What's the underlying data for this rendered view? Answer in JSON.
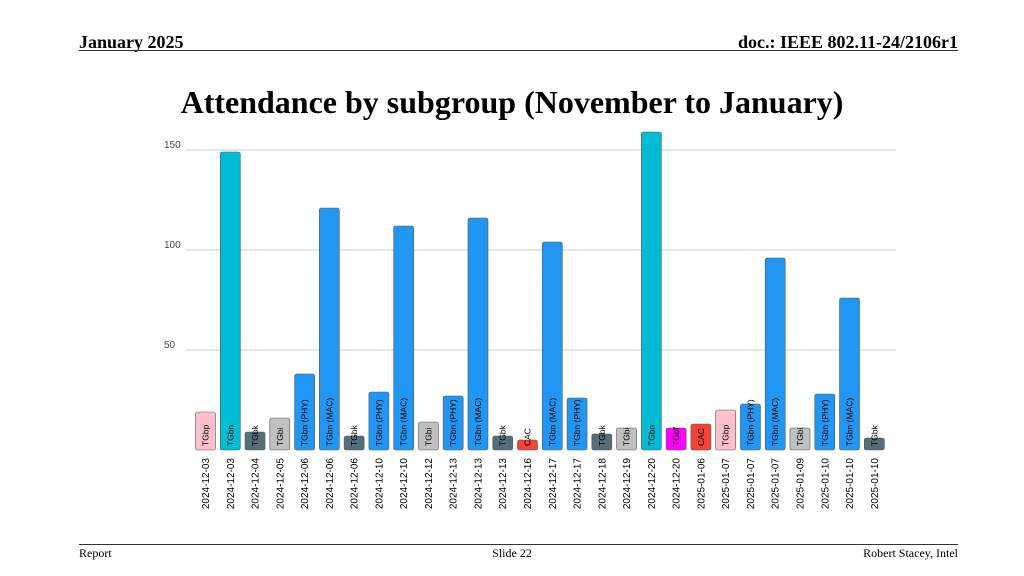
{
  "header": {
    "date": "January 2025",
    "doc": "doc.: IEEE 802.11-24/2106r1"
  },
  "title": "Attendance by subgroup (November to January)",
  "footer": {
    "left": "Report",
    "center": "Slide 22",
    "right": "Robert Stacey, Intel"
  },
  "colors": {
    "TGbp": "#ffc0cb",
    "TGbn": "#00bcd4",
    "TGbk": "#546e7a",
    "TGbi": "#c0c0c0",
    "TGbn (PHY)": "#2196f3",
    "TGbn (MAC)": "#2196f3",
    "CAC": "#f44336",
    "TGbf": "#ff00ff"
  },
  "chart_data": {
    "type": "bar",
    "ylim": [
      0,
      160
    ],
    "yticks": [
      50,
      100,
      150
    ],
    "grid": true,
    "bars": [
      {
        "date": "2024-12-03",
        "group": "TGbp",
        "value": 19
      },
      {
        "date": "2024-12-03",
        "group": "TGbn",
        "value": 149
      },
      {
        "date": "2024-12-04",
        "group": "TGbk",
        "value": 9
      },
      {
        "date": "2024-12-05",
        "group": "TGbi",
        "value": 16
      },
      {
        "date": "2024-12-06",
        "group": "TGbn (PHY)",
        "value": 38
      },
      {
        "date": "2024-12-06",
        "group": "TGbn (MAC)",
        "value": 121
      },
      {
        "date": "2024-12-06",
        "group": "TGbk",
        "value": 7
      },
      {
        "date": "2024-12-10",
        "group": "TGbn (PHY)",
        "value": 29
      },
      {
        "date": "2024-12-10",
        "group": "TGbn (MAC)",
        "value": 112
      },
      {
        "date": "2024-12-12",
        "group": "TGbi",
        "value": 14
      },
      {
        "date": "2024-12-13",
        "group": "TGbn (PHY)",
        "value": 27
      },
      {
        "date": "2024-12-13",
        "group": "TGbn (MAC)",
        "value": 116
      },
      {
        "date": "2024-12-13",
        "group": "TGbk",
        "value": 7
      },
      {
        "date": "2024-12-16",
        "group": "CAC",
        "value": 5
      },
      {
        "date": "2024-12-17",
        "group": "TGbn (MAC)",
        "value": 104
      },
      {
        "date": "2024-12-17",
        "group": "TGbn (PHY)",
        "value": 26
      },
      {
        "date": "2024-12-18",
        "group": "TGbk",
        "value": 8
      },
      {
        "date": "2024-12-19",
        "group": "TGbi",
        "value": 11
      },
      {
        "date": "2024-12-20",
        "group": "TGbn",
        "value": 159
      },
      {
        "date": "2024-12-20",
        "group": "TGbf",
        "value": 11
      },
      {
        "date": "2025-01-06",
        "group": "CAC",
        "value": 13
      },
      {
        "date": "2025-01-07",
        "group": "TGbp",
        "value": 20
      },
      {
        "date": "2025-01-07",
        "group": "TGbn (PHY)",
        "value": 23
      },
      {
        "date": "2025-01-07",
        "group": "TGbn (MAC)",
        "value": 96
      },
      {
        "date": "2025-01-09",
        "group": "TGbi",
        "value": 11
      },
      {
        "date": "2025-01-10",
        "group": "TGbn (PHY)",
        "value": 28
      },
      {
        "date": "2025-01-10",
        "group": "TGbn (MAC)",
        "value": 76
      },
      {
        "date": "2025-01-10",
        "group": "TGbk",
        "value": 6
      }
    ]
  }
}
